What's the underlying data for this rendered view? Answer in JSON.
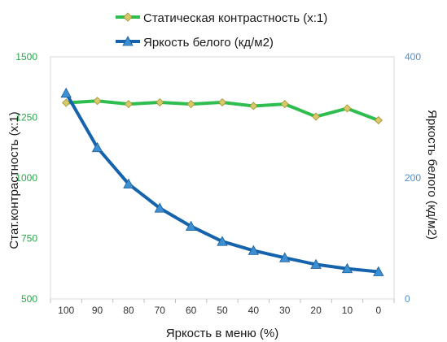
{
  "chart_data": {
    "type": "line",
    "categories": [
      "100",
      "90",
      "80",
      "70",
      "60",
      "50",
      "40",
      "30",
      "20",
      "10",
      "0"
    ],
    "series": [
      {
        "name": "Статическая контрастность  (x:1)",
        "axis": "left",
        "color": "#2ebd4f",
        "marker": "diamond",
        "marker_color": "#d8c96a",
        "values": [
          1310,
          1318,
          1305,
          1312,
          1305,
          1312,
          1297,
          1305,
          1253,
          1287,
          1238
        ]
      },
      {
        "name": "Яркость белого (кд/м2)",
        "axis": "right",
        "color": "#1663ad",
        "marker": "triangle",
        "marker_color": "#3b8fd4",
        "values": [
          340,
          250,
          190,
          150,
          120,
          95,
          80,
          68,
          57,
          50,
          45
        ]
      }
    ],
    "xlabel": "Яркость в меню (%)",
    "ylabel_left": "Стат.контрастность  (x:1)",
    "ylabel_right": "Яркость белого (кд/м2)",
    "ylim_left": [
      500,
      1500
    ],
    "ylim_right": [
      0,
      400
    ],
    "yticks_left": [
      "500",
      "750",
      "1000",
      "1250",
      "1500"
    ],
    "yticks_right": [
      "0",
      "200",
      "400"
    ],
    "legend_position": "top",
    "grid": false
  }
}
